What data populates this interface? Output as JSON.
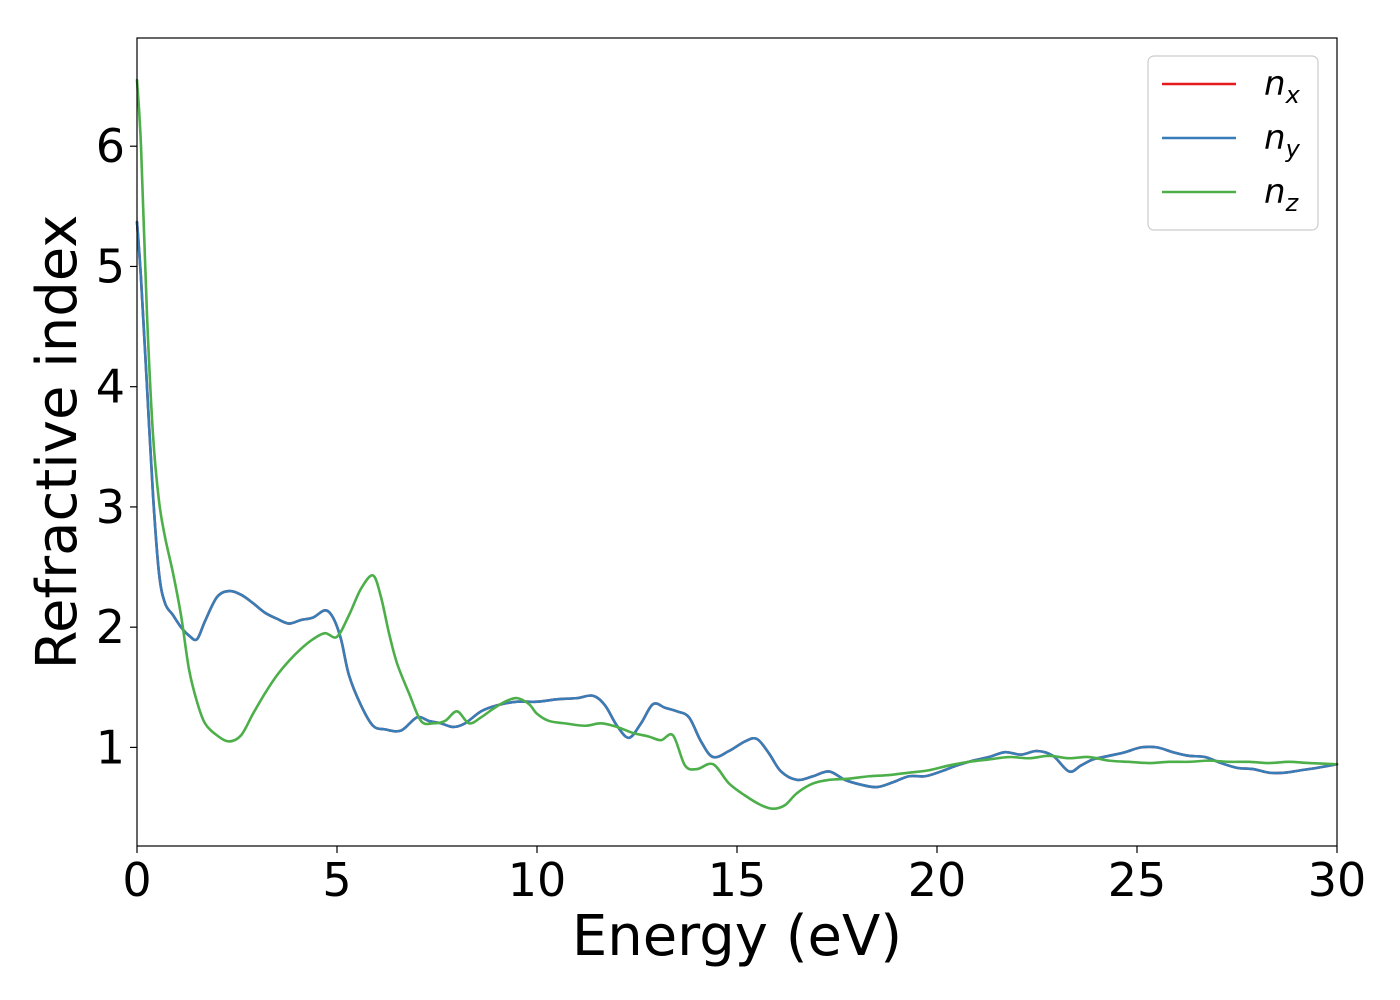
{
  "chart_data": {
    "type": "line",
    "title": "",
    "xlabel": "Energy (eV)",
    "ylabel": "Refractive index",
    "xlim": [
      0,
      30
    ],
    "ylim": [
      0.18,
      6.9
    ],
    "xticks": [
      0,
      5,
      10,
      15,
      20,
      25,
      30
    ],
    "yticks": [
      1,
      2,
      3,
      4,
      5,
      6
    ],
    "grid": false,
    "legend_position": "top-right",
    "series": [
      {
        "name": "n",
        "subscript": "x",
        "color": "#e41a1c",
        "x": [
          0.0,
          0.1,
          0.25,
          0.4,
          0.55,
          0.7,
          0.9,
          1.1,
          1.3,
          1.5,
          1.7,
          2.0,
          2.3,
          2.6,
          2.9,
          3.2,
          3.5,
          3.8,
          4.1,
          4.4,
          4.7,
          4.9,
          5.1,
          5.3,
          5.6,
          5.9,
          6.2,
          6.6,
          7.0,
          7.3,
          7.6,
          7.9,
          8.2,
          8.6,
          9.0,
          9.5,
          10.0,
          10.5,
          11.0,
          11.4,
          11.7,
          12.0,
          12.3,
          12.6,
          12.9,
          13.2,
          13.5,
          13.8,
          14.1,
          14.4,
          14.8,
          15.2,
          15.5,
          15.8,
          16.1,
          16.5,
          16.9,
          17.3,
          17.7,
          18.1,
          18.5,
          18.9,
          19.3,
          19.7,
          20.1,
          20.5,
          20.9,
          21.3,
          21.7,
          22.1,
          22.5,
          22.9,
          23.3,
          23.6,
          23.9,
          24.3,
          24.7,
          25.1,
          25.5,
          25.9,
          26.3,
          26.7,
          27.1,
          27.5,
          27.9,
          28.3,
          28.7,
          29.1,
          29.5,
          30.0
        ],
        "y": [
          5.37,
          4.9,
          4.0,
          3.1,
          2.45,
          2.2,
          2.1,
          2.0,
          1.93,
          1.9,
          2.05,
          2.25,
          2.3,
          2.27,
          2.2,
          2.12,
          2.07,
          2.03,
          2.06,
          2.08,
          2.14,
          2.08,
          1.9,
          1.6,
          1.35,
          1.18,
          1.15,
          1.14,
          1.25,
          1.22,
          1.2,
          1.17,
          1.2,
          1.3,
          1.35,
          1.38,
          1.38,
          1.4,
          1.41,
          1.43,
          1.35,
          1.18,
          1.08,
          1.2,
          1.36,
          1.33,
          1.3,
          1.25,
          1.05,
          0.92,
          0.97,
          1.05,
          1.07,
          0.95,
          0.8,
          0.73,
          0.76,
          0.8,
          0.73,
          0.69,
          0.67,
          0.71,
          0.76,
          0.76,
          0.8,
          0.85,
          0.89,
          0.92,
          0.96,
          0.94,
          0.97,
          0.93,
          0.8,
          0.85,
          0.9,
          0.93,
          0.96,
          1.0,
          1.0,
          0.96,
          0.93,
          0.92,
          0.87,
          0.83,
          0.82,
          0.79,
          0.79,
          0.81,
          0.83,
          0.86
        ]
      },
      {
        "name": "n",
        "subscript": "y",
        "color": "#377eb8",
        "x": [
          0.0,
          0.1,
          0.25,
          0.4,
          0.55,
          0.7,
          0.9,
          1.1,
          1.3,
          1.5,
          1.7,
          2.0,
          2.3,
          2.6,
          2.9,
          3.2,
          3.5,
          3.8,
          4.1,
          4.4,
          4.7,
          4.9,
          5.1,
          5.3,
          5.6,
          5.9,
          6.2,
          6.6,
          7.0,
          7.3,
          7.6,
          7.9,
          8.2,
          8.6,
          9.0,
          9.5,
          10.0,
          10.5,
          11.0,
          11.4,
          11.7,
          12.0,
          12.3,
          12.6,
          12.9,
          13.2,
          13.5,
          13.8,
          14.1,
          14.4,
          14.8,
          15.2,
          15.5,
          15.8,
          16.1,
          16.5,
          16.9,
          17.3,
          17.7,
          18.1,
          18.5,
          18.9,
          19.3,
          19.7,
          20.1,
          20.5,
          20.9,
          21.3,
          21.7,
          22.1,
          22.5,
          22.9,
          23.3,
          23.6,
          23.9,
          24.3,
          24.7,
          25.1,
          25.5,
          25.9,
          26.3,
          26.7,
          27.1,
          27.5,
          27.9,
          28.3,
          28.7,
          29.1,
          29.5,
          30.0
        ],
        "y": [
          5.37,
          4.9,
          4.0,
          3.1,
          2.45,
          2.2,
          2.1,
          2.0,
          1.93,
          1.9,
          2.05,
          2.25,
          2.3,
          2.27,
          2.2,
          2.12,
          2.07,
          2.03,
          2.06,
          2.08,
          2.14,
          2.08,
          1.9,
          1.6,
          1.35,
          1.18,
          1.15,
          1.14,
          1.25,
          1.22,
          1.2,
          1.17,
          1.2,
          1.3,
          1.35,
          1.38,
          1.38,
          1.4,
          1.41,
          1.43,
          1.35,
          1.18,
          1.08,
          1.2,
          1.36,
          1.33,
          1.3,
          1.25,
          1.05,
          0.92,
          0.97,
          1.05,
          1.07,
          0.95,
          0.8,
          0.73,
          0.76,
          0.8,
          0.73,
          0.69,
          0.67,
          0.71,
          0.76,
          0.76,
          0.8,
          0.85,
          0.89,
          0.92,
          0.96,
          0.94,
          0.97,
          0.93,
          0.8,
          0.85,
          0.9,
          0.93,
          0.96,
          1.0,
          1.0,
          0.96,
          0.93,
          0.92,
          0.87,
          0.83,
          0.82,
          0.79,
          0.79,
          0.81,
          0.83,
          0.86
        ]
      },
      {
        "name": "n",
        "subscript": "z",
        "color": "#4daf4a",
        "x": [
          0.0,
          0.1,
          0.25,
          0.4,
          0.55,
          0.7,
          0.9,
          1.1,
          1.3,
          1.5,
          1.7,
          2.0,
          2.3,
          2.6,
          2.9,
          3.2,
          3.5,
          3.8,
          4.1,
          4.4,
          4.7,
          5.0,
          5.3,
          5.6,
          5.9,
          6.1,
          6.3,
          6.5,
          6.8,
          7.1,
          7.4,
          7.7,
          8.0,
          8.3,
          8.6,
          8.9,
          9.2,
          9.5,
          9.8,
          10.0,
          10.3,
          10.7,
          11.2,
          11.6,
          12.0,
          12.4,
          12.8,
          13.1,
          13.4,
          13.7,
          14.0,
          14.4,
          14.8,
          15.2,
          15.6,
          15.9,
          16.2,
          16.5,
          16.9,
          17.3,
          17.8,
          18.3,
          18.8,
          19.3,
          19.8,
          20.3,
          20.8,
          21.3,
          21.8,
          22.3,
          22.8,
          23.3,
          23.8,
          24.3,
          24.8,
          25.3,
          25.8,
          26.3,
          26.8,
          27.3,
          27.8,
          28.3,
          28.8,
          29.3,
          30.0
        ],
        "y": [
          6.55,
          6.0,
          4.6,
          3.6,
          3.05,
          2.75,
          2.45,
          2.1,
          1.65,
          1.38,
          1.2,
          1.1,
          1.05,
          1.1,
          1.28,
          1.45,
          1.6,
          1.72,
          1.82,
          1.9,
          1.95,
          1.92,
          2.1,
          2.32,
          2.43,
          2.25,
          1.95,
          1.7,
          1.45,
          1.22,
          1.2,
          1.22,
          1.3,
          1.2,
          1.25,
          1.32,
          1.38,
          1.41,
          1.36,
          1.28,
          1.22,
          1.2,
          1.18,
          1.2,
          1.17,
          1.12,
          1.09,
          1.06,
          1.1,
          0.85,
          0.82,
          0.86,
          0.7,
          0.6,
          0.52,
          0.49,
          0.52,
          0.62,
          0.7,
          0.73,
          0.74,
          0.76,
          0.77,
          0.79,
          0.81,
          0.85,
          0.88,
          0.9,
          0.92,
          0.91,
          0.93,
          0.91,
          0.92,
          0.89,
          0.88,
          0.87,
          0.88,
          0.88,
          0.89,
          0.88,
          0.88,
          0.87,
          0.88,
          0.87,
          0.86
        ]
      }
    ]
  }
}
